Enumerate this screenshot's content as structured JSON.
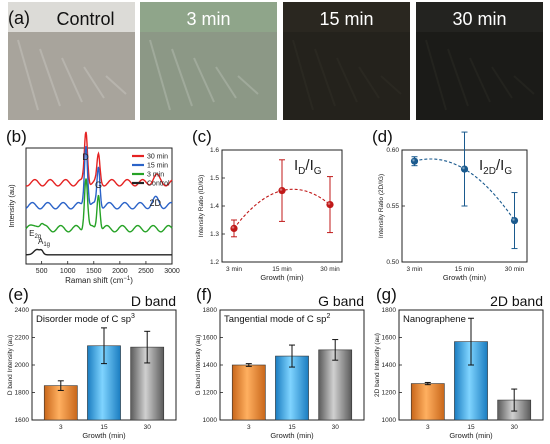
{
  "panel_labels": [
    "(a)",
    "(b)",
    "(c)",
    "(d)",
    "(e)",
    "(f)",
    "(g)"
  ],
  "photos": [
    {
      "label": "Control",
      "bg": "#a8a49c"
    },
    {
      "label": "3 min",
      "bg": "#8c9886"
    },
    {
      "label": "15 min",
      "bg": "#24221c"
    },
    {
      "label": "30 min",
      "bg": "#1b1b18"
    }
  ],
  "chart_data": [
    {
      "type": "line",
      "panel": "(b)",
      "xlabel": "Raman shift (cm",
      "xlabel_sup": "−1",
      "xlabel_tail": ")",
      "ylabel": "Intensity (au)",
      "xlim": [
        200,
        3000
      ],
      "x_ticks": [
        "500",
        "1000",
        "1500",
        "2000",
        "2500",
        "3000"
      ],
      "peak_labels": {
        "d": "D",
        "g": "G",
        "twod": "2D",
        "e2g": "E",
        "e2g_sub": "2g",
        "a1g": "A",
        "a1g_sub": "1g"
      },
      "series": [
        {
          "name": "30 min",
          "color": "#e52222",
          "offset": 0.74,
          "d": 0.5,
          "g": 0.26,
          "twod": 0.06
        },
        {
          "name": "15 min",
          "color": "#2b63c8",
          "offset": 0.52,
          "d": 0.6,
          "g": 0.38,
          "twod": 0.06
        },
        {
          "name": "3 min",
          "color": "#26a226",
          "offset": 0.3,
          "d": 0.5,
          "g": 0.35,
          "twod": 0.0
        },
        {
          "name": "Control",
          "color": "#222222",
          "offset": 0.05,
          "d": 0.0,
          "g": 0.0,
          "twod": 0.0
        }
      ]
    },
    {
      "type": "scatter",
      "panel": "(c)",
      "annotation": "I",
      "annotation_sub1": "D",
      "annotation_mid": "/I",
      "annotation_sub2": "G",
      "ylabel": "Intensity Ratio (ID/IG)",
      "xlabel": "Growth (min)",
      "categories": [
        "3 min",
        "15 min",
        "30 min"
      ],
      "values": [
        1.32,
        1.455,
        1.405
      ],
      "errors": [
        0.03,
        0.11,
        0.1
      ],
      "ylim": [
        1.2,
        1.6
      ],
      "y_ticks": [
        "1.2",
        "1.3",
        "1.4",
        "1.5",
        "1.6"
      ],
      "color": "#c01818"
    },
    {
      "type": "scatter",
      "panel": "(d)",
      "annotation": "I",
      "annotation_sub1": "2D",
      "annotation_mid": "/I",
      "annotation_sub2": "G",
      "ylabel": "Intensity Ratio (2D/IG)",
      "xlabel": "Growth (min)",
      "categories": [
        "3 min",
        "15 min",
        "30 min"
      ],
      "values": [
        0.59,
        0.583,
        0.537
      ],
      "errors": [
        0.004,
        0.033,
        0.025
      ],
      "ylim": [
        0.5,
        0.6
      ],
      "y_ticks": [
        "0.50",
        "0.55",
        "0.60"
      ],
      "color": "#1a5a8e"
    },
    {
      "type": "bar",
      "panel": "(e)",
      "title": "D band",
      "annotation": "Disorder mode of C sp",
      "annotation_sup": "3",
      "ylabel": "D band Intensity (au)",
      "xlabel": "Growth (min)",
      "categories": [
        "3",
        "15",
        "30"
      ],
      "values": [
        1850,
        2140,
        2130
      ],
      "errors": [
        35,
        130,
        115
      ],
      "ylim": [
        1600,
        2400
      ],
      "y_ticks": [
        "1600",
        "1800",
        "2000",
        "2200",
        "2400"
      ],
      "colors": [
        "#f08a2c",
        "#2aa6ea",
        "#8f8f8f"
      ]
    },
    {
      "type": "bar",
      "panel": "(f)",
      "title": "G band",
      "annotation": "Tangential mode of C sp",
      "annotation_sup": "2",
      "ylabel": "G band Intensity (au)",
      "xlabel": "Growth (min)",
      "categories": [
        "3",
        "15",
        "30"
      ],
      "values": [
        1400,
        1465,
        1510
      ],
      "errors": [
        10,
        80,
        75
      ],
      "ylim": [
        1000,
        1800
      ],
      "y_ticks": [
        "1000",
        "1200",
        "1400",
        "1600",
        "1800"
      ],
      "colors": [
        "#f08a2c",
        "#2aa6ea",
        "#8f8f8f"
      ]
    },
    {
      "type": "bar",
      "panel": "(g)",
      "title": "2D band",
      "annotation": "Nanographene",
      "ylabel": "2D band Intensity (au)",
      "xlabel": "Growth (min)",
      "categories": [
        "3",
        "15",
        "30"
      ],
      "values": [
        1265,
        1570,
        1145
      ],
      "errors": [
        8,
        170,
        80
      ],
      "ylim": [
        1000,
        1800
      ],
      "y_ticks": [
        "1000",
        "1200",
        "1400",
        "1600",
        "1800"
      ],
      "colors": [
        "#f08a2c",
        "#2aa6ea",
        "#8f8f8f"
      ]
    }
  ]
}
